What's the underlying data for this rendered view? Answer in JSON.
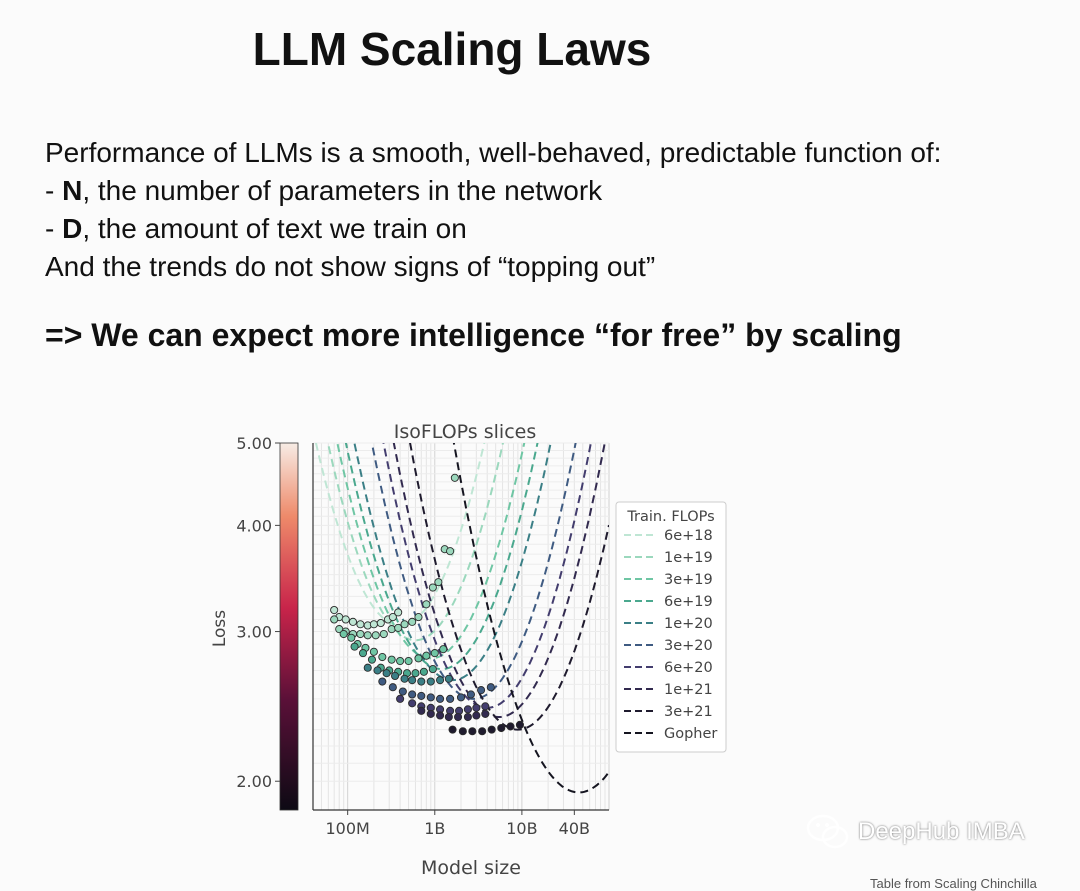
{
  "slide": {
    "title": "LLM Scaling Laws",
    "intro": "Performance of LLMs is a smooth, well-behaved, predictable function of:",
    "bullet1_dash": "- ",
    "bullet1_bold": "N",
    "bullet1_rest": ", the number of parameters in the network",
    "bullet2_dash": "- ",
    "bullet2_bold": "D",
    "bullet2_rest": ", the amount of text we train on",
    "trend": "And the trends do not show signs of “topping out”",
    "conclusion": "=> We can expect more intelligence “for free” by scaling"
  },
  "watermark": {
    "text": "DeepHub IMBA",
    "icon": "wechat-icon"
  },
  "footer_cut": "Table from Scaling Chinchilla",
  "chart_data": {
    "type": "scatter",
    "title": "IsoFLOPs slices",
    "xlabel": "Model size",
    "ylabel": "Loss",
    "xscale": "log",
    "yscale": "log",
    "xlim": [
      40000000,
      100000000000
    ],
    "ylim": [
      1.85,
      5.0
    ],
    "xticks": [
      {
        "v": 100000000,
        "label": "100M"
      },
      {
        "v": 1000000000,
        "label": "1B"
      },
      {
        "v": 10000000000,
        "label": "10B"
      },
      {
        "v": 40000000000,
        "label": "40B"
      }
    ],
    "yticks": [
      {
        "v": 2.0,
        "label": "2.00"
      },
      {
        "v": 3.0,
        "label": "3.00"
      },
      {
        "v": 4.0,
        "label": "4.00"
      },
      {
        "v": 5.0,
        "label": "5.00"
      }
    ],
    "colorbar": {
      "ticks": [
        "2.00",
        "3.00",
        "4.00",
        "5.00"
      ]
    },
    "legend_title": "Train. FLOPs",
    "legend_position": "right",
    "grid": true,
    "series": [
      {
        "name": "6e+18",
        "color": "#bfe6d4",
        "opt": [
          400000000.0,
          3.05
        ],
        "curv": 0.23,
        "points": [
          [
            70000000.0,
            3.18
          ],
          [
            80000000.0,
            3.12
          ],
          [
            95000000.0,
            3.1
          ],
          [
            115000000.0,
            3.08
          ],
          [
            140000000.0,
            3.06
          ],
          [
            170000000.0,
            3.05
          ],
          [
            200000000.0,
            3.06
          ],
          [
            240000000.0,
            3.07
          ],
          [
            290000000.0,
            3.1
          ],
          [
            330000000.0,
            3.12
          ],
          [
            380000000.0,
            3.16
          ]
        ]
      },
      {
        "name": "1e+19",
        "color": "#9bd8bd",
        "opt": [
          600000000.0,
          2.93
        ],
        "curv": 0.23,
        "points": [
          [
            70000000.0,
            3.1
          ],
          [
            80000000.0,
            3.02
          ],
          [
            95000000.0,
            3.0
          ],
          [
            115000000.0,
            2.98
          ],
          [
            140000000.0,
            2.98
          ],
          [
            170000000.0,
            2.97
          ],
          [
            210000000.0,
            2.97
          ],
          [
            260000000.0,
            2.98
          ],
          [
            320000000.0,
            3.02
          ],
          [
            380000000.0,
            3.03
          ],
          [
            450000000.0,
            3.06
          ],
          [
            550000000.0,
            3.08
          ],
          [
            650000000.0,
            3.12
          ],
          [
            800000000.0,
            3.23
          ],
          [
            950000000.0,
            3.38
          ],
          [
            1100000000.0,
            3.43
          ],
          [
            1300000000.0,
            3.75
          ],
          [
            1500000000.0,
            3.73
          ],
          [
            1700000000.0,
            4.55
          ]
        ]
      },
      {
        "name": "3e+19",
        "color": "#6fc6a4",
        "opt": [
          900000000.0,
          2.79
        ],
        "curv": 0.22,
        "points": [
          [
            90000000.0,
            2.98
          ],
          [
            110000000.0,
            2.95
          ],
          [
            130000000.0,
            2.9
          ],
          [
            160000000.0,
            2.87
          ],
          [
            200000000.0,
            2.84
          ],
          [
            250000000.0,
            2.8
          ],
          [
            320000000.0,
            2.78
          ],
          [
            400000000.0,
            2.77
          ],
          [
            500000000.0,
            2.77
          ],
          [
            650000000.0,
            2.79
          ],
          [
            800000000.0,
            2.81
          ],
          [
            1000000000.0,
            2.83
          ],
          [
            1250000000.0,
            2.86
          ]
        ]
      },
      {
        "name": "6e+19",
        "color": "#4aa88e",
        "opt": [
          1200000000.0,
          2.71
        ],
        "curv": 0.22,
        "points": [
          [
            120000000.0,
            2.88
          ],
          [
            150000000.0,
            2.83
          ],
          [
            190000000.0,
            2.78
          ],
          [
            240000000.0,
            2.72
          ],
          [
            300000000.0,
            2.7
          ],
          [
            380000000.0,
            2.69
          ],
          [
            480000000.0,
            2.68
          ],
          [
            600000000.0,
            2.68
          ],
          [
            750000000.0,
            2.69
          ],
          [
            950000000.0,
            2.71
          ]
        ]
      },
      {
        "name": "1e+20",
        "color": "#3b7f86",
        "opt": [
          1600000000.0,
          2.63
        ],
        "curv": 0.22,
        "points": [
          [
            170000000.0,
            2.72
          ],
          [
            220000000.0,
            2.7
          ],
          [
            280000000.0,
            2.68
          ],
          [
            350000000.0,
            2.66
          ],
          [
            450000000.0,
            2.64
          ],
          [
            550000000.0,
            2.63
          ],
          [
            700000000.0,
            2.62
          ],
          [
            900000000.0,
            2.62
          ],
          [
            1150000000.0,
            2.63
          ],
          [
            1450000000.0,
            2.64
          ]
        ]
      },
      {
        "name": "3e+20",
        "color": "#3f5b82",
        "opt": [
          2800000000.0,
          2.5
        ],
        "curv": 0.22,
        "points": [
          [
            250000000.0,
            2.62
          ],
          [
            330000000.0,
            2.58
          ],
          [
            430000000.0,
            2.55
          ],
          [
            550000000.0,
            2.53
          ],
          [
            700000000.0,
            2.52
          ],
          [
            900000000.0,
            2.51
          ],
          [
            1150000000.0,
            2.5
          ],
          [
            1500000000.0,
            2.5
          ],
          [
            2000000000.0,
            2.51
          ],
          [
            2600000000.0,
            2.53
          ],
          [
            3400000000.0,
            2.56
          ],
          [
            4400000000.0,
            2.58
          ]
        ]
      },
      {
        "name": "6e+20",
        "color": "#433d6e",
        "opt": [
          4000000000.0,
          2.44
        ],
        "curv": 0.22,
        "points": [
          [
            400000000.0,
            2.5
          ],
          [
            550000000.0,
            2.47
          ],
          [
            700000000.0,
            2.45
          ],
          [
            900000000.0,
            2.44
          ],
          [
            1150000000.0,
            2.43
          ],
          [
            1500000000.0,
            2.42
          ],
          [
            1900000000.0,
            2.42
          ],
          [
            2400000000.0,
            2.43
          ],
          [
            3000000000.0,
            2.44
          ],
          [
            3800000000.0,
            2.45
          ]
        ]
      },
      {
        "name": "1e+21",
        "color": "#322a4f",
        "opt": [
          5500000000.0,
          2.38
        ],
        "curv": 0.22,
        "points": [
          [
            700000000.0,
            2.42
          ],
          [
            900000000.0,
            2.4
          ],
          [
            1150000000.0,
            2.39
          ],
          [
            1450000000.0,
            2.38
          ],
          [
            1850000000.0,
            2.38
          ],
          [
            2400000000.0,
            2.38
          ],
          [
            3000000000.0,
            2.39
          ],
          [
            3800000000.0,
            2.4
          ]
        ]
      },
      {
        "name": "3e+21",
        "color": "#1f1b2e",
        "opt": [
          9000000000.0,
          2.3
        ],
        "curv": 0.22,
        "points": [
          [
            1600000000.0,
            2.3
          ],
          [
            2100000000.0,
            2.29
          ],
          [
            2700000000.0,
            2.29
          ],
          [
            3500000000.0,
            2.29
          ],
          [
            4500000000.0,
            2.3
          ],
          [
            5800000000.0,
            2.31
          ],
          [
            7400000000.0,
            2.32
          ],
          [
            9500000000.0,
            2.33
          ]
        ]
      },
      {
        "name": "Gopher",
        "color": "#151520",
        "opt": [
          45000000000.0,
          1.94
        ],
        "curv": 0.2,
        "points": []
      }
    ]
  }
}
